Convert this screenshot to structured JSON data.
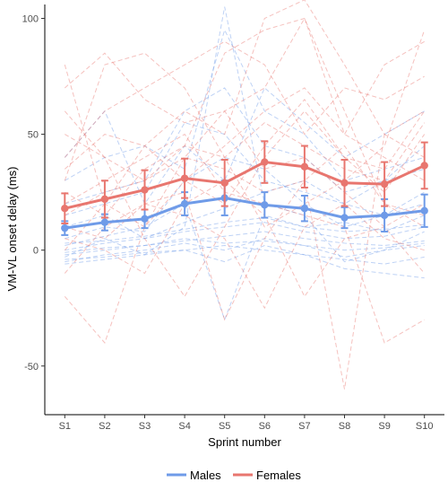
{
  "chart_data": {
    "type": "line",
    "xlabel": "Sprint number",
    "ylabel": "VM-VL onset delay (ms)",
    "categories": [
      "S1",
      "S2",
      "S3",
      "S4",
      "S5",
      "S6",
      "S7",
      "S8",
      "S9",
      "S10"
    ],
    "ylim": [
      -71,
      106
    ],
    "yticks": [
      100,
      50,
      0,
      -50
    ],
    "grid": false,
    "legend_position": "bottom",
    "series": [
      {
        "name": "Males",
        "color": "#6f9be8",
        "values": [
          9.5,
          12,
          13.5,
          20,
          22.5,
          19.5,
          18,
          14,
          15,
          17
        ],
        "error": [
          3,
          3.5,
          4,
          5,
          7.5,
          5.5,
          5.5,
          4.5,
          7,
          7
        ]
      },
      {
        "name": "Females",
        "color": "#e8766f",
        "values": [
          18,
          22,
          26,
          31,
          29,
          38,
          36,
          29,
          28.5,
          36.5
        ],
        "error": [
          6.5,
          8,
          8.5,
          8.5,
          10,
          9,
          9,
          10,
          9.5,
          10
        ]
      }
    ],
    "individual_traces": {
      "Males": [
        [
          -3,
          5,
          -2,
          10,
          105,
          20,
          15,
          -5,
          0,
          8
        ],
        [
          40,
          60,
          20,
          45,
          30,
          70,
          55,
          40,
          50,
          60
        ],
        [
          -5,
          -2,
          0,
          3,
          0,
          5,
          2,
          -3,
          0,
          2
        ],
        [
          5,
          10,
          8,
          30,
          40,
          35,
          20,
          10,
          15,
          20
        ],
        [
          -2,
          0,
          2,
          5,
          3,
          4,
          2,
          0,
          1,
          3
        ],
        [
          20,
          25,
          30,
          60,
          70,
          45,
          40,
          25,
          30,
          35
        ],
        [
          0,
          3,
          5,
          8,
          10,
          12,
          8,
          5,
          6,
          10
        ],
        [
          -4,
          -3,
          -1,
          0,
          -5,
          2,
          -2,
          -8,
          -10,
          -12
        ],
        [
          10,
          15,
          5,
          12,
          18,
          25,
          30,
          20,
          15,
          25
        ],
        [
          2,
          6,
          10,
          20,
          -30,
          15,
          10,
          12,
          8,
          15
        ],
        [
          -1,
          1,
          2,
          4,
          6,
          8,
          5,
          3,
          2,
          4
        ],
        [
          30,
          40,
          45,
          35,
          95,
          60,
          50,
          30,
          35,
          40
        ],
        [
          -6,
          -4,
          -2,
          0,
          2,
          0,
          -2,
          -4,
          -6,
          -3
        ],
        [
          15,
          20,
          25,
          55,
          50,
          30,
          25,
          20,
          30,
          45
        ],
        [
          3,
          4,
          6,
          9,
          12,
          14,
          10,
          8,
          9,
          11
        ]
      ],
      "Females": [
        [
          80,
          20,
          10,
          40,
          60,
          70,
          100,
          50,
          80,
          90
        ],
        [
          -20,
          -40,
          10,
          30,
          45,
          60,
          70,
          50,
          40,
          30
        ],
        [
          30,
          80,
          85,
          70,
          40,
          10,
          20,
          30,
          45,
          95
        ],
        [
          50,
          40,
          30,
          45,
          85,
          95,
          100,
          60,
          20,
          10
        ],
        [
          10,
          5,
          20,
          25,
          -30,
          5,
          30,
          -60,
          50,
          60
        ],
        [
          0,
          20,
          45,
          60,
          50,
          100,
          108,
          80,
          50,
          40
        ],
        [
          60,
          40,
          5,
          -20,
          10,
          40,
          60,
          40,
          25,
          50
        ],
        [
          20,
          30,
          40,
          50,
          25,
          20,
          15,
          10,
          -40,
          -30
        ],
        [
          40,
          60,
          70,
          80,
          90,
          80,
          50,
          70,
          65,
          75
        ],
        [
          -10,
          10,
          20,
          15,
          5,
          -25,
          10,
          20,
          5,
          0
        ],
        [
          25,
          15,
          35,
          45,
          40,
          55,
          45,
          35,
          30,
          55
        ],
        [
          70,
          85,
          65,
          55,
          60,
          35,
          40,
          25,
          10,
          20
        ],
        [
          5,
          0,
          -10,
          20,
          30,
          15,
          -20,
          5,
          10,
          -10
        ],
        [
          35,
          50,
          45,
          30,
          20,
          45,
          65,
          40,
          35,
          60
        ],
        [
          15,
          25,
          30,
          40,
          35,
          25,
          30,
          45,
          20,
          15
        ]
      ]
    }
  }
}
